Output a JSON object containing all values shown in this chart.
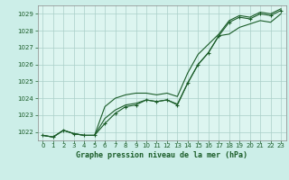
{
  "title": "Graphe pression niveau de la mer (hPa)",
  "bg_color": "#cceee8",
  "plot_bg_color": "#ddf5f0",
  "grid_color": "#aacfc8",
  "line_color": "#1a5c28",
  "xlim": [
    -0.5,
    23.5
  ],
  "ylim": [
    1021.5,
    1029.5
  ],
  "yticks": [
    1022,
    1023,
    1024,
    1025,
    1026,
    1027,
    1028,
    1029
  ],
  "xticks": [
    0,
    1,
    2,
    3,
    4,
    5,
    6,
    7,
    8,
    9,
    10,
    11,
    12,
    13,
    14,
    15,
    16,
    17,
    18,
    19,
    20,
    21,
    22,
    23
  ],
  "series1": [
    1021.8,
    1021.7,
    1022.1,
    1021.9,
    1021.8,
    1021.8,
    1022.5,
    1023.1,
    1023.5,
    1023.6,
    1023.9,
    1023.8,
    1023.9,
    1023.6,
    1024.9,
    1026.0,
    1026.7,
    1027.7,
    1028.5,
    1028.8,
    1028.7,
    1029.0,
    1028.9,
    1029.2
  ],
  "series2": [
    1021.8,
    1021.7,
    1022.1,
    1021.9,
    1021.8,
    1021.8,
    1022.8,
    1023.3,
    1023.6,
    1023.7,
    1023.9,
    1023.8,
    1023.9,
    1023.65,
    1024.9,
    1026.0,
    1026.7,
    1027.7,
    1027.8,
    1028.2,
    1028.4,
    1028.6,
    1028.5,
    1029.0
  ],
  "series3": [
    1021.8,
    1021.7,
    1022.1,
    1021.9,
    1021.8,
    1021.8,
    1023.5,
    1024.0,
    1024.2,
    1024.3,
    1024.3,
    1024.2,
    1024.3,
    1024.1,
    1025.5,
    1026.6,
    1027.2,
    1027.8,
    1028.6,
    1028.9,
    1028.8,
    1029.1,
    1029.0,
    1029.3
  ],
  "title_fontsize": 6,
  "tick_fontsize": 5,
  "linewidth": 0.8,
  "markersize": 3.5
}
